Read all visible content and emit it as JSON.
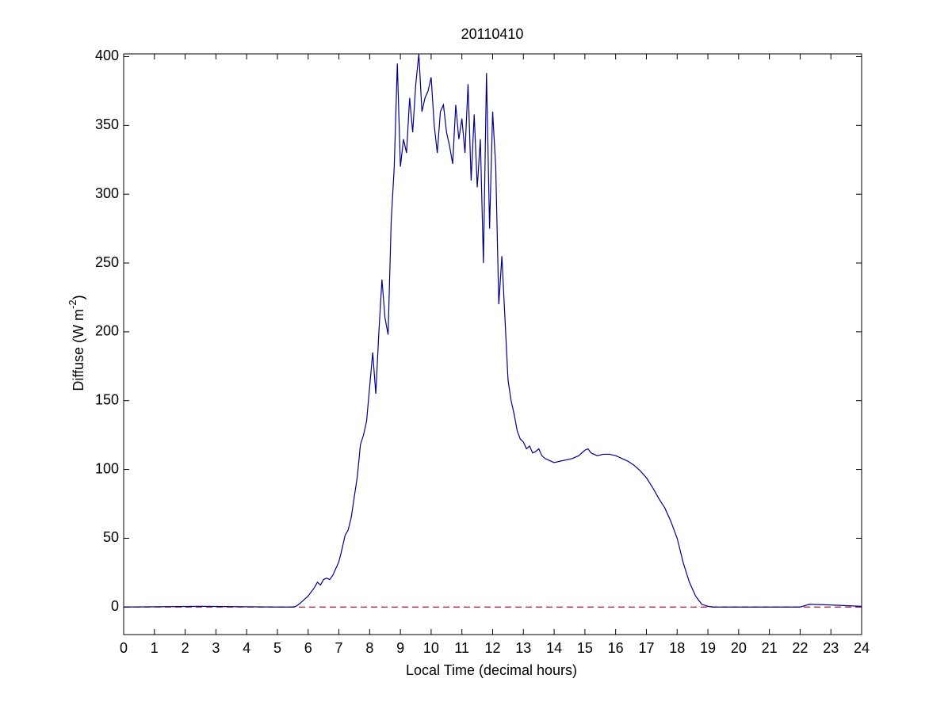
{
  "chart_data": {
    "type": "line",
    "title": "20110410",
    "xlabel": "Local Time (decimal hours)",
    "ylabel": [
      "Diffuse (W m",
      "-2",
      ")"
    ],
    "xlim": [
      0,
      24
    ],
    "ylim": [
      -20,
      402
    ],
    "xticks": [
      0,
      1,
      2,
      3,
      4,
      5,
      6,
      7,
      8,
      9,
      10,
      11,
      12,
      13,
      14,
      15,
      16,
      17,
      18,
      19,
      20,
      21,
      22,
      23,
      24
    ],
    "yticks": [
      0,
      50,
      100,
      150,
      200,
      250,
      300,
      350,
      400
    ],
    "grid": false,
    "reference_line": {
      "value": 0,
      "color": "#c8102e"
    },
    "x": [
      0,
      2.5,
      5,
      5.5,
      5.6,
      5.7,
      5.8,
      5.9,
      6.0,
      6.1,
      6.2,
      6.3,
      6.4,
      6.5,
      6.6,
      6.7,
      6.8,
      6.9,
      7.0,
      7.1,
      7.2,
      7.3,
      7.4,
      7.5,
      7.6,
      7.7,
      7.8,
      7.9,
      8.0,
      8.1,
      8.2,
      8.3,
      8.4,
      8.5,
      8.6,
      8.7,
      8.8,
      8.9,
      9.0,
      9.1,
      9.2,
      9.3,
      9.4,
      9.5,
      9.6,
      9.7,
      9.8,
      9.9,
      10.0,
      10.1,
      10.2,
      10.3,
      10.4,
      10.5,
      10.6,
      10.7,
      10.8,
      10.9,
      11.0,
      11.1,
      11.2,
      11.3,
      11.4,
      11.5,
      11.6,
      11.7,
      11.8,
      11.9,
      12.0,
      12.1,
      12.2,
      12.3,
      12.4,
      12.5,
      12.6,
      12.7,
      12.8,
      12.9,
      13.0,
      13.1,
      13.2,
      13.3,
      13.4,
      13.5,
      13.6,
      13.7,
      13.8,
      13.9,
      14.0,
      14.2,
      14.4,
      14.6,
      14.8,
      15.0,
      15.1,
      15.2,
      15.4,
      15.6,
      15.8,
      16.0,
      16.2,
      16.4,
      16.6,
      16.8,
      17.0,
      17.2,
      17.4,
      17.6,
      17.8,
      18.0,
      18.2,
      18.4,
      18.6,
      18.8,
      19.0,
      19.2,
      22,
      22.3,
      23,
      23.5,
      24
    ],
    "series": [
      {
        "name": "Diffuse",
        "color": "#00008b",
        "values": [
          0,
          0.5,
          0,
          0,
          0.5,
          2,
          4,
          6,
          8,
          11,
          14,
          18,
          16,
          20,
          21,
          20,
          23,
          28,
          33,
          42,
          52,
          56,
          65,
          80,
          95,
          118,
          125,
          135,
          160,
          185,
          155,
          200,
          238,
          210,
          198,
          280,
          320,
          395,
          320,
          340,
          330,
          370,
          345,
          380,
          402,
          360,
          370,
          375,
          385,
          350,
          330,
          360,
          365,
          345,
          335,
          322,
          365,
          340,
          355,
          330,
          380,
          310,
          358,
          305,
          340,
          250,
          388,
          275,
          360,
          320,
          220,
          255,
          210,
          165,
          150,
          140,
          128,
          122,
          120,
          115,
          117,
          112,
          113,
          115,
          110,
          108,
          107,
          106,
          105,
          106,
          107,
          108,
          110,
          114,
          115,
          112,
          110,
          111,
          111,
          110,
          108,
          106,
          103,
          99,
          94,
          87,
          79,
          72,
          62,
          50,
          32,
          18,
          8,
          2,
          0.5,
          0,
          0,
          2,
          1.5,
          1,
          0.5
        ]
      }
    ]
  }
}
